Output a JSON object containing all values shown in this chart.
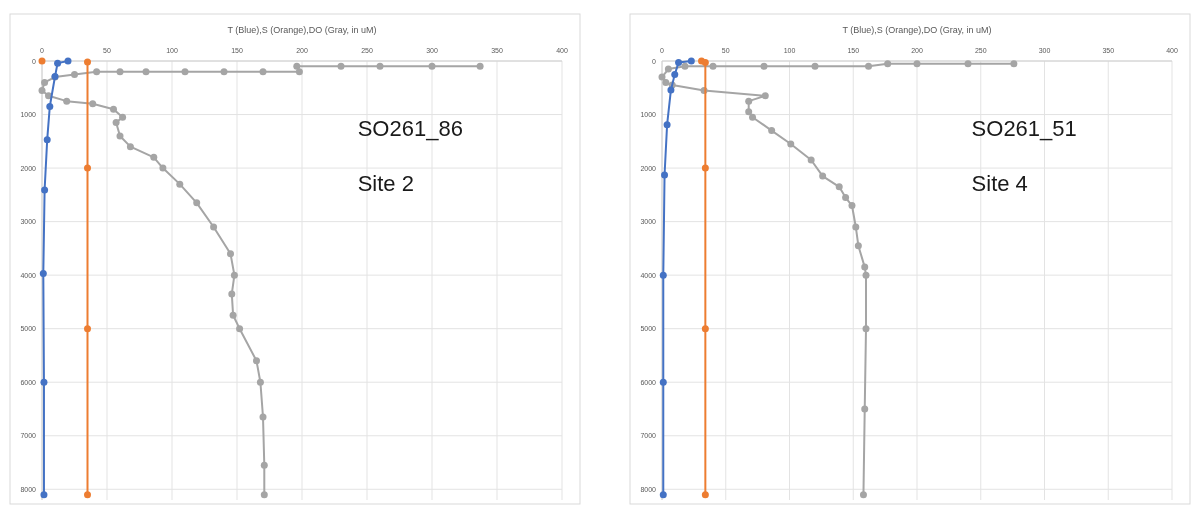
{
  "chart_data": [
    {
      "type": "line",
      "title": "T (Blue),S (Orange),DO (Gray, in uM)",
      "xlim": [
        0,
        400
      ],
      "xticks": [
        0,
        50,
        100,
        150,
        200,
        250,
        300,
        350,
        400
      ],
      "ylim": [
        8200,
        0
      ],
      "yticks": [
        0,
        1000,
        2000,
        3000,
        4000,
        5000,
        6000,
        7000,
        8000
      ],
      "grid": true,
      "marker": "circle",
      "annotations": [
        "SO261_86",
        "Site 2"
      ],
      "series": [
        {
          "color": "#4472c4",
          "x": [
            20,
            12,
            10,
            6,
            4,
            2,
            1,
            1.5,
            1.5
          ],
          "values": [
            0,
            40,
            290,
            850,
            1470,
            2410,
            3970,
            6000,
            8100
          ]
        },
        {
          "color": "#ed7d31",
          "x": [
            0,
            null,
            35,
            35,
            35,
            35
          ],
          "values": [
            0,
            null,
            20,
            2000,
            5000,
            8100
          ]
        },
        {
          "color": "#a5a5a5",
          "x": [
            337,
            300,
            260,
            230,
            196,
            198,
            170,
            140,
            110,
            80,
            60,
            42,
            25,
            10,
            2,
            0,
            5,
            19,
            39,
            55,
            62,
            57,
            60,
            68,
            86,
            93,
            106,
            119,
            132,
            145,
            148,
            146,
            147,
            152,
            165,
            168,
            170,
            171,
            171
          ],
          "values": [
            100,
            100,
            100,
            100,
            100,
            200,
            200,
            200,
            200,
            200,
            200,
            200,
            250,
            300,
            400,
            550,
            650,
            750,
            800,
            900,
            1050,
            1150,
            1400,
            1600,
            1800,
            2000,
            2300,
            2650,
            3100,
            3600,
            4000,
            4350,
            4750,
            5000,
            5600,
            6000,
            6650,
            7550,
            8100
          ]
        }
      ]
    },
    {
      "type": "line",
      "title": "T (Blue),S (Orange),DO (Gray, in uM)",
      "xlim": [
        0,
        400
      ],
      "xticks": [
        0,
        50,
        100,
        150,
        200,
        250,
        300,
        350,
        400
      ],
      "ylim": [
        8200,
        0
      ],
      "yticks": [
        0,
        1000,
        2000,
        3000,
        4000,
        5000,
        6000,
        7000,
        8000
      ],
      "grid": true,
      "marker": "circle",
      "annotations": [
        "SO261_51",
        "Site 4"
      ],
      "series": [
        {
          "color": "#4472c4",
          "x": [
            23,
            13,
            10,
            7,
            4,
            2,
            1,
            1,
            1
          ],
          "values": [
            0,
            30,
            250,
            540,
            1190,
            2130,
            4000,
            6000,
            8100
          ]
        },
        {
          "color": "#ed7d31",
          "x": [
            31,
            34,
            34,
            34,
            34
          ],
          "values": [
            0,
            30,
            2000,
            5000,
            8100
          ]
        },
        {
          "color": "#a5a5a5",
          "x": [
            276,
            240,
            200,
            177,
            162,
            120,
            80,
            40,
            18,
            5,
            0,
            3,
            8,
            33,
            81,
            68,
            68,
            71,
            86,
            101,
            117,
            126,
            139,
            144,
            149,
            152,
            154,
            159,
            160,
            160,
            159,
            158
          ],
          "values": [
            50,
            50,
            50,
            50,
            100,
            100,
            100,
            100,
            100,
            150,
            300,
            400,
            450,
            550,
            650,
            750,
            950,
            1050,
            1300,
            1550,
            1850,
            2150,
            2350,
            2550,
            2700,
            3100,
            3450,
            3850,
            4000,
            5000,
            6500,
            8100
          ]
        }
      ]
    }
  ]
}
